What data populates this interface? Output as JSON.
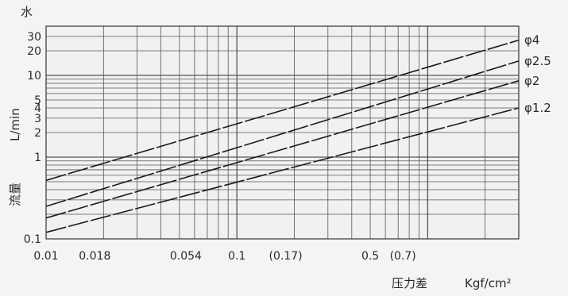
{
  "chart_data": {
    "type": "line",
    "x_scale": "log",
    "y_scale": "log",
    "xlim": [
      0.01,
      3.0
    ],
    "ylim": [
      0.1,
      40
    ],
    "grid": true,
    "y_top_label": "水",
    "ylabel_top": "L/min",
    "ylabel_bottom": "流量",
    "xlabel": "压力差",
    "xunit": "Kgf/cm²",
    "x_tick_labels": [
      {
        "value": 0.01,
        "text": "0.01"
      },
      {
        "value": 0.018,
        "text": "0.018"
      },
      {
        "value": 0.054,
        "text": "0.054"
      },
      {
        "value": 0.1,
        "text": "0.1"
      },
      {
        "value": 0.17,
        "text": "(0.17)"
      },
      {
        "value": 0.5,
        "text": "0.5"
      },
      {
        "value": 0.7,
        "text": "(0.7)"
      }
    ],
    "y_tick_labels": [
      {
        "value": 0.1,
        "text": "0.1"
      },
      {
        "value": 1,
        "text": "1"
      },
      {
        "value": 2,
        "text": "2"
      },
      {
        "value": 3,
        "text": "3"
      },
      {
        "value": 4,
        "text": "4"
      },
      {
        "value": 5,
        "text": "5"
      },
      {
        "value": 10,
        "text": "10"
      },
      {
        "value": 20,
        "text": "20"
      },
      {
        "value": 30,
        "text": "30"
      }
    ],
    "series": [
      {
        "name": "φ4",
        "x": [
          0.01,
          3.0
        ],
        "y": [
          0.52,
          27
        ]
      },
      {
        "name": "φ2.5",
        "x": [
          0.01,
          3.0
        ],
        "y": [
          0.25,
          15
        ]
      },
      {
        "name": "φ2",
        "x": [
          0.01,
          3.0
        ],
        "y": [
          0.18,
          8.6
        ]
      },
      {
        "name": "φ1.2",
        "x": [
          0.01,
          3.0
        ],
        "y": [
          0.12,
          4.0
        ]
      }
    ]
  }
}
